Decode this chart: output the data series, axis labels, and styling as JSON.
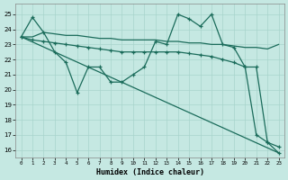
{
  "xlabel": "Humidex (Indice chaleur)",
  "background_color": "#c5e8e2",
  "grid_color": "#a8d4cc",
  "line_color": "#1a6b5a",
  "xlim": [
    -0.5,
    23.5
  ],
  "ylim": [
    15.5,
    25.7
  ],
  "yticks": [
    16,
    17,
    18,
    19,
    20,
    21,
    22,
    23,
    24,
    25
  ],
  "xticks": [
    0,
    1,
    2,
    3,
    4,
    5,
    6,
    7,
    8,
    9,
    10,
    11,
    12,
    13,
    14,
    15,
    16,
    17,
    18,
    19,
    20,
    21,
    22,
    23
  ],
  "series1_x": [
    0,
    1,
    2,
    3,
    4,
    5,
    6,
    7,
    8,
    9,
    10,
    11,
    12,
    13,
    14,
    15,
    16,
    17,
    18,
    19,
    20,
    21,
    22,
    23
  ],
  "series1_y": [
    23.5,
    24.8,
    23.8,
    22.5,
    21.8,
    19.8,
    21.5,
    21.5,
    20.5,
    20.5,
    21.0,
    21.5,
    23.2,
    23.0,
    25.0,
    24.7,
    24.2,
    25.0,
    23.0,
    22.8,
    21.5,
    17.0,
    16.5,
    15.8
  ],
  "series2_x": [
    0,
    1,
    2,
    3,
    4,
    5,
    6,
    7,
    8,
    9,
    10,
    11,
    12,
    13,
    14,
    15,
    16,
    17,
    18,
    19,
    20,
    21,
    22,
    23
  ],
  "series2_y": [
    23.5,
    23.5,
    23.8,
    23.7,
    23.6,
    23.6,
    23.5,
    23.4,
    23.4,
    23.3,
    23.3,
    23.3,
    23.3,
    23.2,
    23.2,
    23.1,
    23.1,
    23.0,
    23.0,
    22.9,
    22.8,
    22.8,
    22.7,
    23.0
  ],
  "series3_x": [
    0,
    1,
    2,
    3,
    4,
    5,
    6,
    7,
    8,
    9,
    10,
    11,
    12,
    13,
    14,
    15,
    16,
    17,
    18,
    19,
    20,
    21,
    22,
    23
  ],
  "series3_y": [
    23.5,
    23.3,
    23.2,
    23.1,
    23.0,
    22.9,
    22.8,
    22.7,
    22.6,
    22.5,
    22.5,
    22.5,
    22.5,
    22.5,
    22.5,
    22.4,
    22.3,
    22.2,
    22.0,
    21.8,
    21.5,
    21.5,
    16.5,
    16.2
  ],
  "series4_x": [
    0,
    23
  ],
  "series4_y": [
    23.5,
    15.8
  ]
}
